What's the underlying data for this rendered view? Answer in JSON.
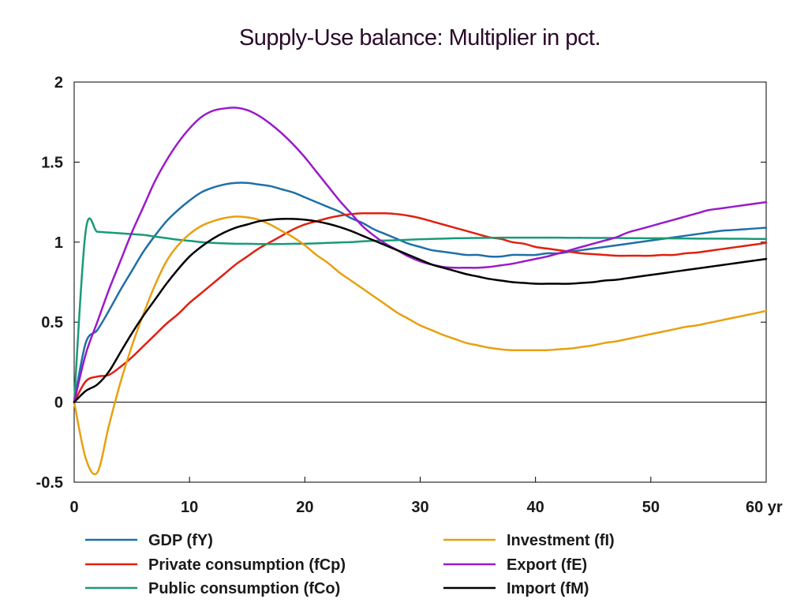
{
  "chart_data": {
    "type": "line",
    "title": "Supply-Use balance: Multiplier in pct.",
    "x_unit_label": "yr",
    "xlim": [
      0,
      60
    ],
    "ylim": [
      -0.5,
      2
    ],
    "x_ticks": [
      0,
      10,
      20,
      30,
      40,
      50,
      60
    ],
    "x_tick_labels": [
      "0",
      "10",
      "20",
      "30",
      "40",
      "50",
      "60 yr"
    ],
    "y_ticks": [
      -0.5,
      0,
      0.5,
      1,
      1.5,
      2
    ],
    "y_tick_labels": [
      "-0.5",
      "0",
      "0.5",
      "1",
      "1.5",
      "2"
    ],
    "zero_line": true,
    "grid": false,
    "legend_position": "bottom",
    "x": [
      0,
      1,
      2,
      3,
      4,
      5,
      6,
      7,
      8,
      9,
      10,
      11,
      12,
      13,
      14,
      15,
      16,
      17,
      18,
      19,
      20,
      21,
      22,
      23,
      24,
      25,
      26,
      27,
      28,
      29,
      30,
      31,
      32,
      33,
      34,
      35,
      36,
      37,
      38,
      39,
      40,
      41,
      42,
      43,
      44,
      45,
      46,
      47,
      48,
      49,
      50,
      51,
      52,
      53,
      54,
      55,
      56,
      57,
      58,
      59,
      60
    ],
    "series": [
      {
        "name": "GDP (fY)",
        "color": "#1f6fa8",
        "values": [
          0,
          0.37,
          0.45,
          0.57,
          0.7,
          0.82,
          0.94,
          1.04,
          1.13,
          1.2,
          1.26,
          1.31,
          1.34,
          1.36,
          1.37,
          1.37,
          1.36,
          1.35,
          1.33,
          1.31,
          1.28,
          1.25,
          1.22,
          1.19,
          1.15,
          1.12,
          1.08,
          1.05,
          1.02,
          0.99,
          0.97,
          0.95,
          0.94,
          0.93,
          0.92,
          0.92,
          0.91,
          0.91,
          0.92,
          0.92,
          0.92,
          0.93,
          0.93,
          0.94,
          0.95,
          0.96,
          0.97,
          0.98,
          0.99,
          1.0,
          1.01,
          1.02,
          1.03,
          1.04,
          1.05,
          1.06,
          1.07,
          1.075,
          1.08,
          1.085,
          1.09
        ]
      },
      {
        "name": "Private consumption (fCp)",
        "color": "#e02010",
        "values": [
          0,
          0.13,
          0.16,
          0.17,
          0.22,
          0.28,
          0.35,
          0.42,
          0.49,
          0.55,
          0.62,
          0.68,
          0.74,
          0.8,
          0.86,
          0.91,
          0.96,
          1.0,
          1.04,
          1.08,
          1.11,
          1.13,
          1.15,
          1.165,
          1.175,
          1.18,
          1.18,
          1.18,
          1.175,
          1.165,
          1.15,
          1.13,
          1.11,
          1.09,
          1.07,
          1.05,
          1.03,
          1.02,
          1.0,
          0.99,
          0.97,
          0.96,
          0.95,
          0.94,
          0.93,
          0.925,
          0.92,
          0.915,
          0.915,
          0.915,
          0.915,
          0.92,
          0.92,
          0.93,
          0.935,
          0.945,
          0.955,
          0.965,
          0.975,
          0.985,
          0.995
        ]
      },
      {
        "name": "Public consumption (fCo)",
        "color": "#1a9a78",
        "values": [
          0,
          1.07,
          1.065,
          1.06,
          1.055,
          1.05,
          1.045,
          1.035,
          1.025,
          1.015,
          1.008,
          1.0,
          0.995,
          0.992,
          0.99,
          0.99,
          0.988,
          0.988,
          0.988,
          0.99,
          0.99,
          0.992,
          0.995,
          0.998,
          1.0,
          1.005,
          1.008,
          1.01,
          1.012,
          1.015,
          1.018,
          1.02,
          1.022,
          1.024,
          1.025,
          1.026,
          1.027,
          1.028,
          1.028,
          1.028,
          1.028,
          1.028,
          1.028,
          1.027,
          1.027,
          1.026,
          1.026,
          1.026,
          1.025,
          1.025,
          1.024,
          1.024,
          1.023,
          1.023,
          1.022,
          1.022,
          1.022,
          1.021,
          1.021,
          1.02,
          1.02
        ]
      },
      {
        "name": "Investment (fI)",
        "color": "#e8a010",
        "values": [
          0,
          -0.35,
          -0.44,
          -0.15,
          0.12,
          0.35,
          0.55,
          0.73,
          0.88,
          0.98,
          1.05,
          1.1,
          1.13,
          1.15,
          1.16,
          1.155,
          1.14,
          1.11,
          1.07,
          1.03,
          0.98,
          0.92,
          0.87,
          0.81,
          0.76,
          0.71,
          0.66,
          0.61,
          0.56,
          0.52,
          0.48,
          0.45,
          0.42,
          0.395,
          0.37,
          0.355,
          0.34,
          0.33,
          0.325,
          0.325,
          0.325,
          0.325,
          0.33,
          0.335,
          0.345,
          0.355,
          0.37,
          0.38,
          0.395,
          0.41,
          0.425,
          0.44,
          0.455,
          0.47,
          0.48,
          0.495,
          0.51,
          0.525,
          0.54,
          0.555,
          0.57
        ]
      },
      {
        "name": "Export (fE)",
        "color": "#9a1ac8",
        "values": [
          0,
          0.3,
          0.5,
          0.7,
          0.88,
          1.06,
          1.22,
          1.38,
          1.51,
          1.62,
          1.71,
          1.78,
          1.82,
          1.835,
          1.84,
          1.825,
          1.79,
          1.74,
          1.68,
          1.61,
          1.53,
          1.44,
          1.35,
          1.26,
          1.18,
          1.1,
          1.04,
          0.99,
          0.95,
          0.91,
          0.88,
          0.86,
          0.845,
          0.84,
          0.84,
          0.84,
          0.845,
          0.855,
          0.865,
          0.88,
          0.895,
          0.91,
          0.93,
          0.95,
          0.97,
          0.99,
          1.01,
          1.03,
          1.06,
          1.08,
          1.1,
          1.12,
          1.14,
          1.16,
          1.18,
          1.2,
          1.21,
          1.22,
          1.23,
          1.24,
          1.25
        ]
      },
      {
        "name": "Import (fM)",
        "color": "#000000",
        "values": [
          0,
          0.07,
          0.11,
          0.19,
          0.31,
          0.43,
          0.54,
          0.64,
          0.74,
          0.83,
          0.91,
          0.97,
          1.02,
          1.06,
          1.09,
          1.11,
          1.13,
          1.14,
          1.145,
          1.145,
          1.14,
          1.13,
          1.115,
          1.095,
          1.07,
          1.04,
          1.01,
          0.98,
          0.95,
          0.92,
          0.89,
          0.86,
          0.84,
          0.82,
          0.8,
          0.785,
          0.77,
          0.76,
          0.75,
          0.745,
          0.74,
          0.74,
          0.74,
          0.74,
          0.745,
          0.75,
          0.76,
          0.765,
          0.775,
          0.785,
          0.795,
          0.805,
          0.815,
          0.825,
          0.835,
          0.845,
          0.855,
          0.865,
          0.875,
          0.885,
          0.895
        ]
      }
    ],
    "legend_order": [
      0,
      3,
      1,
      4,
      2,
      5
    ]
  }
}
